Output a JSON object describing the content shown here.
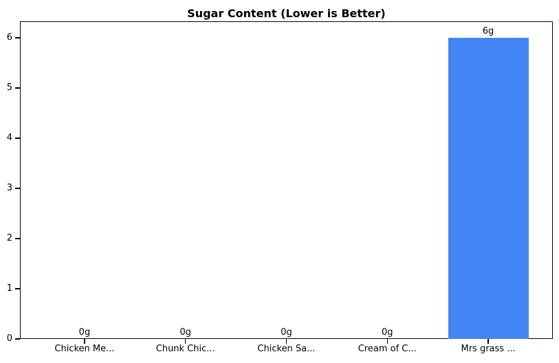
{
  "chart_data": {
    "type": "bar",
    "title": "Sugar Content (Lower is Better)",
    "categories": [
      "Chicken Me...",
      "Chunk Chic...",
      "Chicken Sa...",
      "Cream of C...",
      "Mrs grass ..."
    ],
    "values": [
      0,
      0,
      0,
      0,
      6
    ],
    "value_labels": [
      "0g",
      "0g",
      "0g",
      "0g",
      "6g"
    ],
    "xlabel": "",
    "ylabel": "",
    "yticks": [
      0,
      1,
      2,
      3,
      4,
      5,
      6
    ],
    "ylim": [
      0,
      6.33
    ],
    "bar_color": "#4285F4",
    "text_color": "#000000",
    "grid": false,
    "legend": null
  }
}
